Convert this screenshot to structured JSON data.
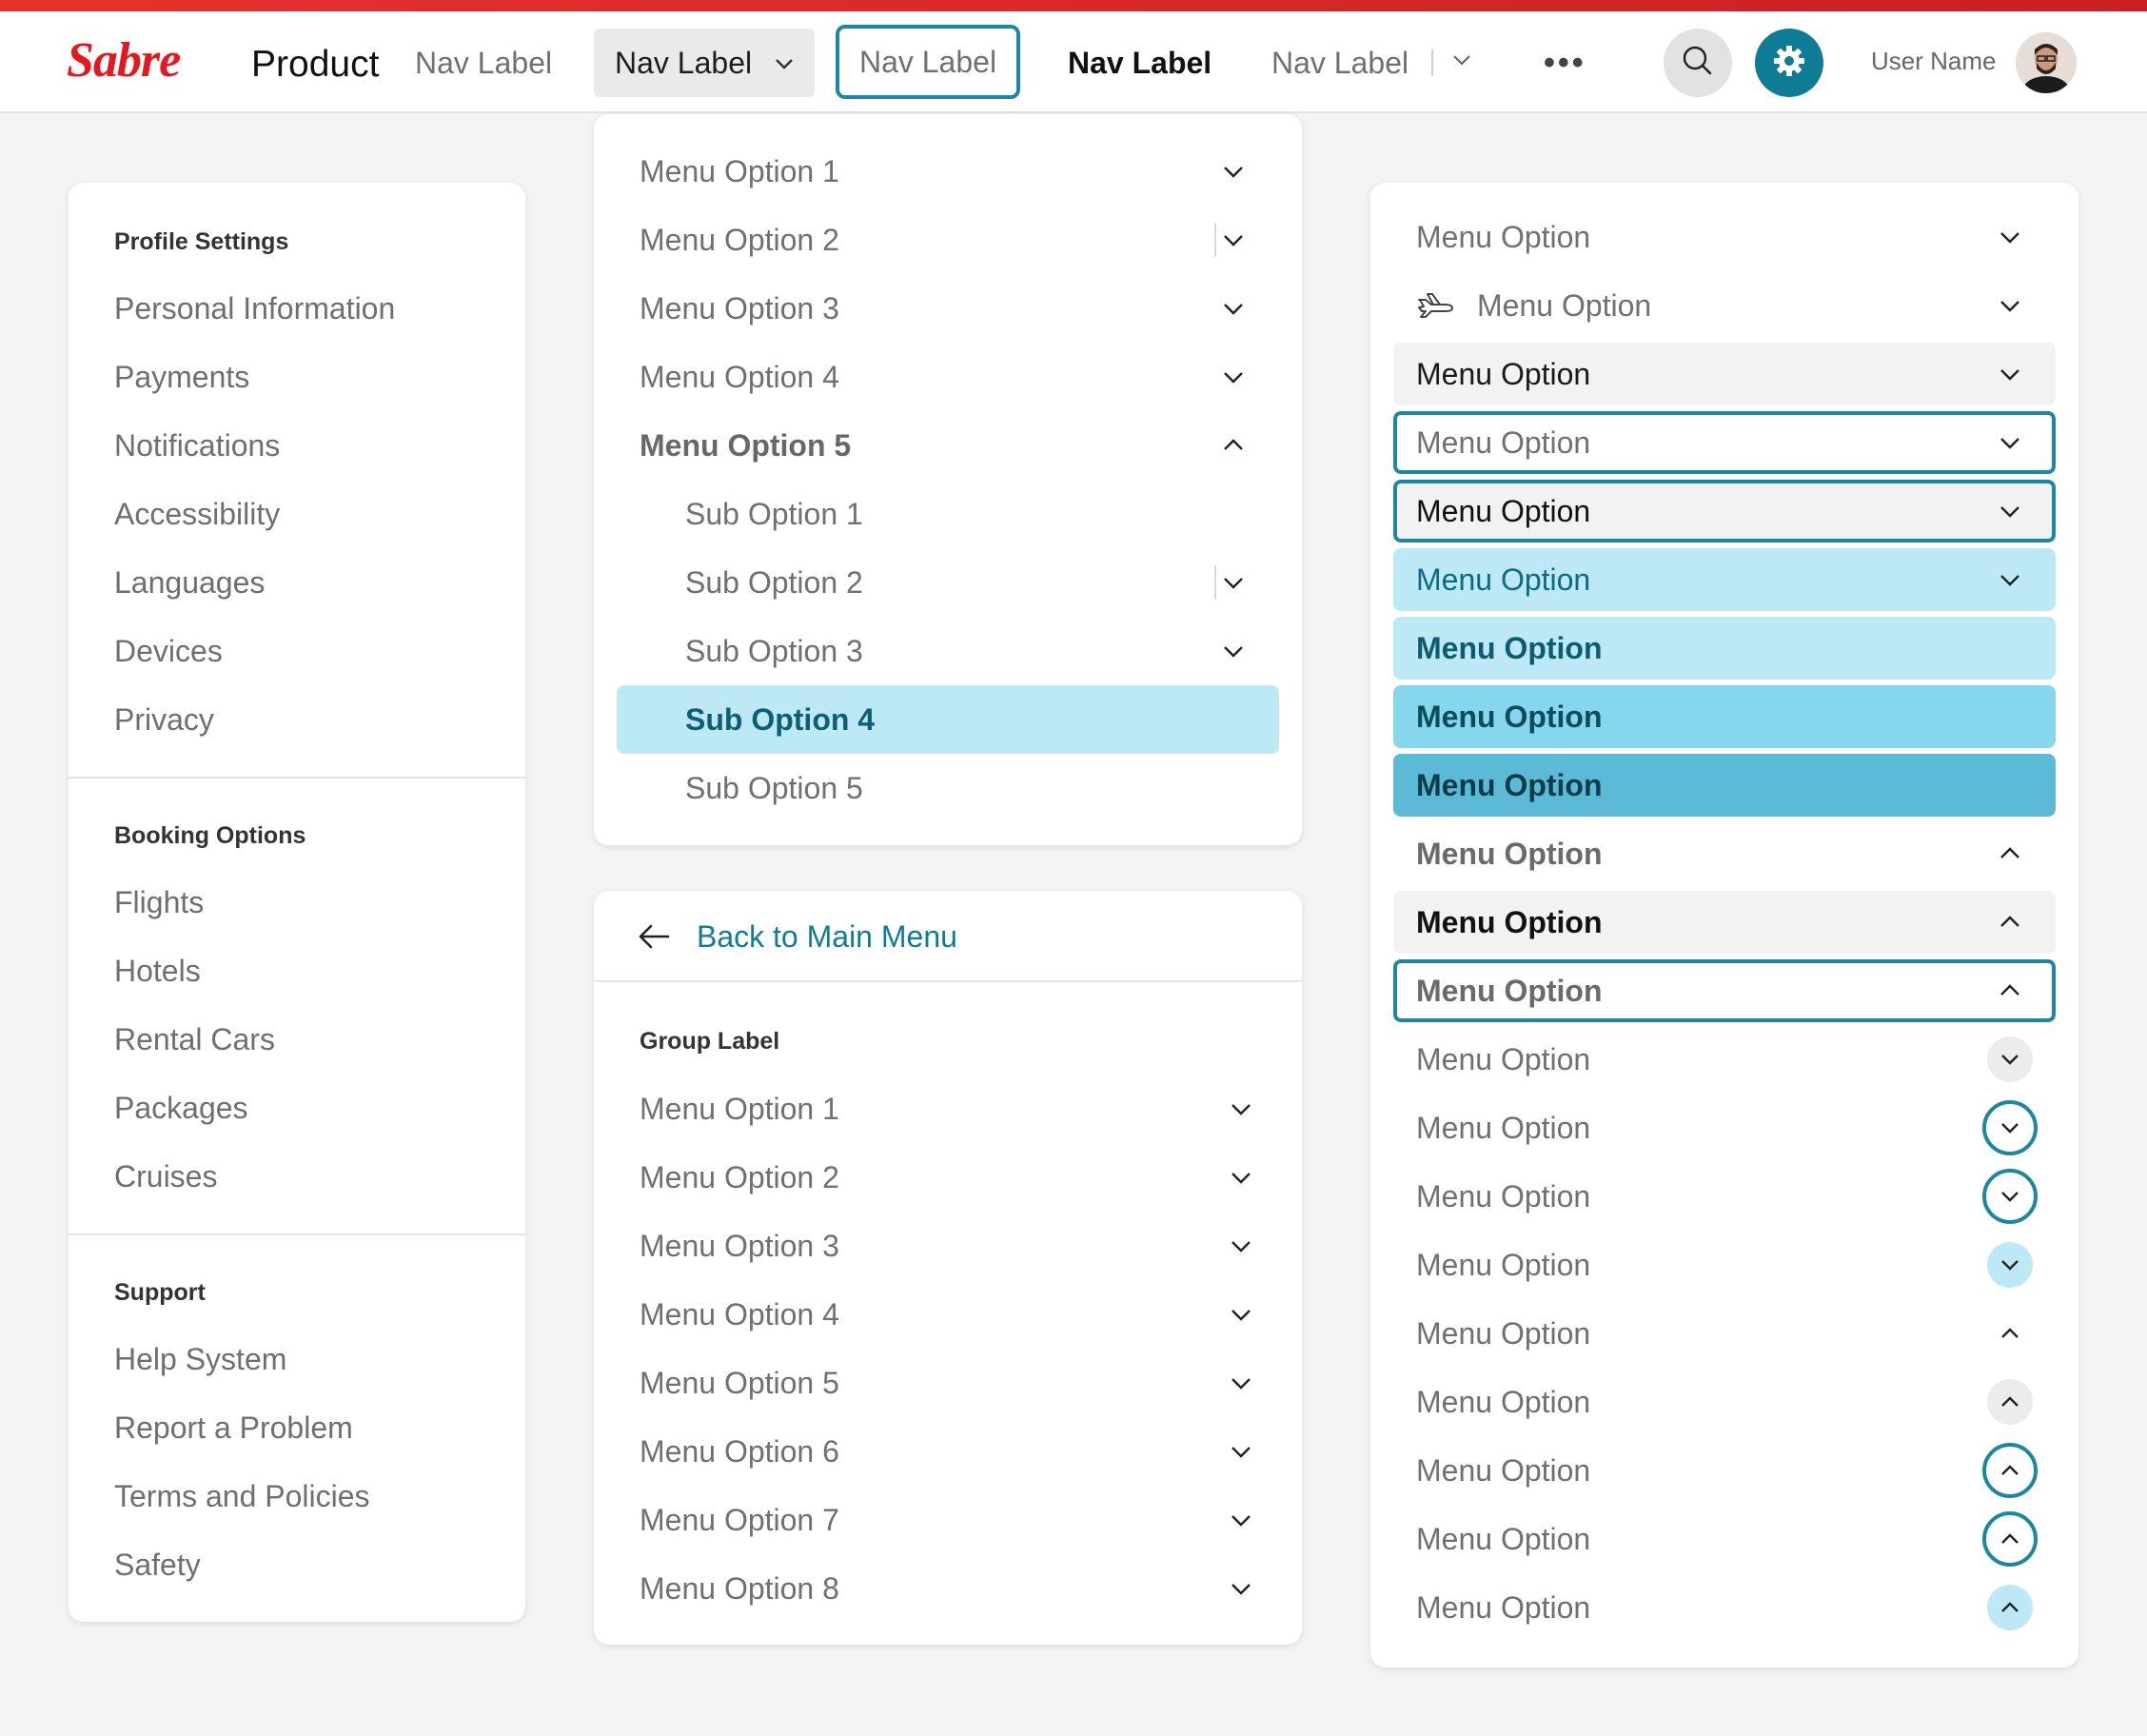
{
  "brand": {
    "logo_text": "Sabre",
    "product": "Product",
    "accent": "#0f7c96",
    "brand_red": "#e4191f"
  },
  "nav": {
    "items": [
      "Nav Label",
      "Nav Label",
      "Nav Label",
      "Nav Label",
      "Nav Label"
    ],
    "more": "•••"
  },
  "user": {
    "name": "User Name"
  },
  "sidebar": {
    "groups": [
      {
        "title": "Profile Settings",
        "items": [
          "Personal Information",
          "Payments",
          "Notifications",
          "Accessibility",
          "Languages",
          "Devices",
          "Privacy"
        ]
      },
      {
        "title": "Booking Options",
        "items": [
          "Flights",
          "Hotels",
          "Rental Cars",
          "Packages",
          "Cruises"
        ]
      },
      {
        "title": "Support",
        "items": [
          "Help System",
          "Report a Problem",
          "Terms and Policies",
          "Safety"
        ]
      }
    ]
  },
  "dropdown": {
    "items": [
      "Menu Option 1",
      "Menu Option 2",
      "Menu Option 3",
      "Menu Option 4",
      "Menu Option 5"
    ],
    "sub_items": [
      "Sub Option 1",
      "Sub Option 2",
      "Sub Option 3",
      "Sub Option 4",
      "Sub Option 5"
    ]
  },
  "submenu": {
    "back_label": "Back to Main Menu",
    "group_label": "Group Label",
    "items": [
      "Menu Option 1",
      "Menu Option 2",
      "Menu Option 3",
      "Menu Option 4",
      "Menu Option 5",
      "Menu Option 6",
      "Menu Option 7",
      "Menu Option 8"
    ]
  },
  "states": {
    "label": "Menu Option"
  }
}
